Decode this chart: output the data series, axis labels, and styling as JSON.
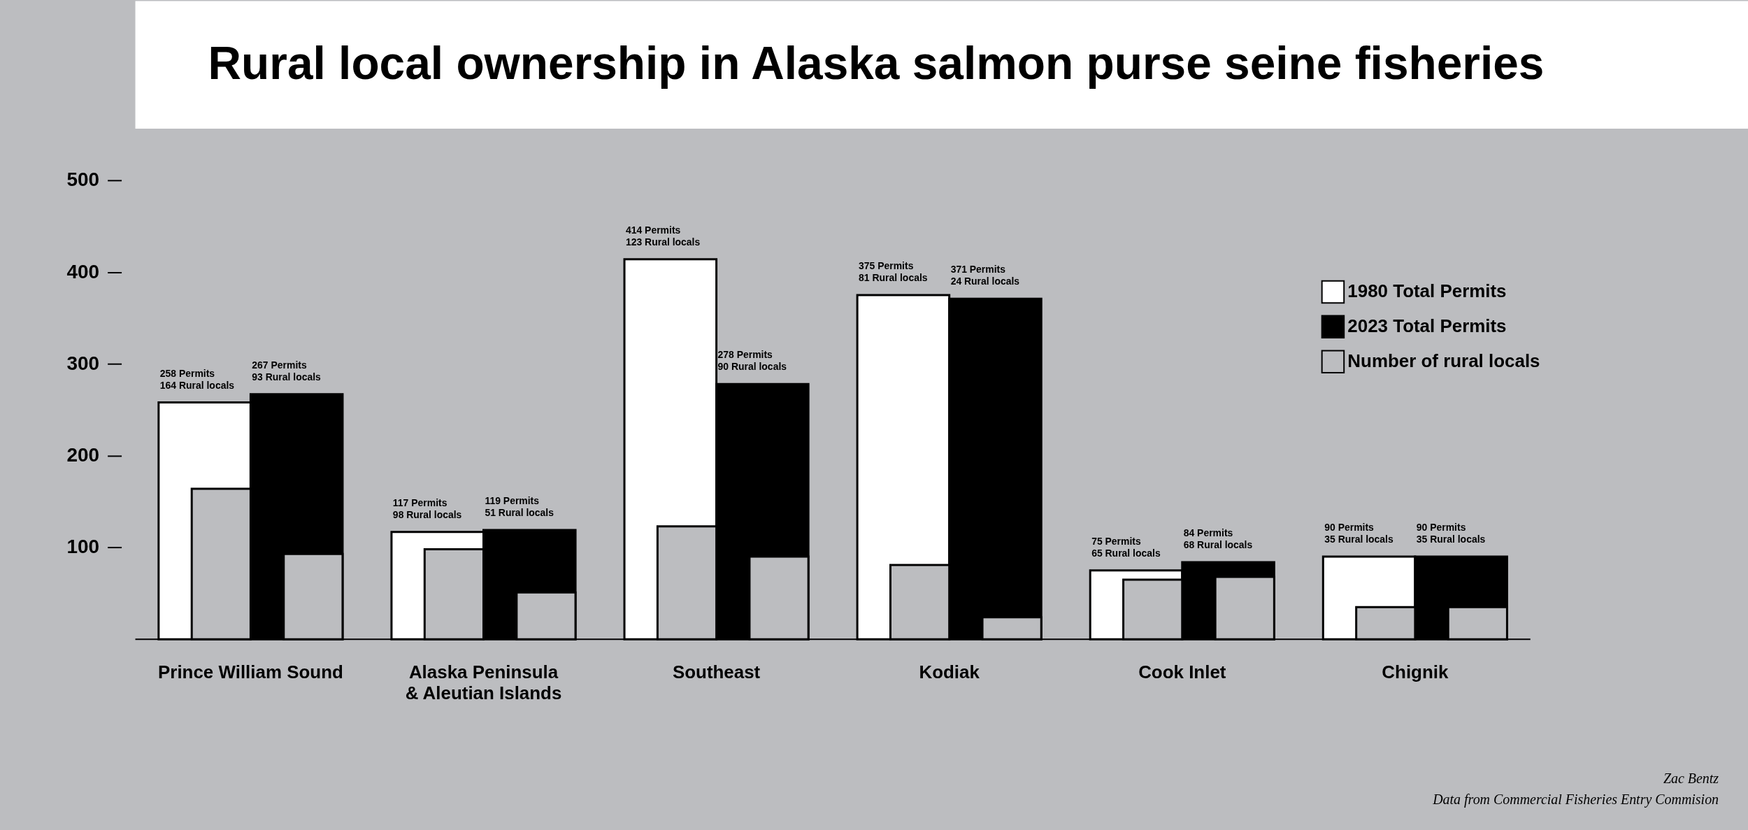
{
  "chart_data": {
    "type": "bar",
    "title": "Rural local ownership in Alaska salmon purse seine fisheries",
    "categories": [
      "Prince William Sound",
      "Alaska Peninsula & Aleutian Islands",
      "Southeast",
      "Kodiak",
      "Cook Inlet",
      "Chignik"
    ],
    "series": [
      {
        "name": "1980 Total Permits",
        "color": "#ffffff",
        "values": [
          258,
          117,
          414,
          375,
          75,
          90
        ],
        "value_labels": [
          "258 Permits\n164 Rural locals",
          "117 Permits\n98 Rural locals",
          "414 Permits\n123 Rural locals",
          "375 Permits\n81 Rural locals",
          "75 Permits\n65 Rural locals",
          "90 Permits\n35 Rural locals"
        ]
      },
      {
        "name": "2023 Total Permits",
        "color": "#000000",
        "values": [
          267,
          119,
          278,
          371,
          84,
          90
        ],
        "value_labels": [
          "267 Permits\n93 Rural locals",
          "119 Permits\n51 Rural locals",
          "278 Permits\n90 Rural locals",
          "371 Permits\n24 Rural locals",
          "84 Permits\n68 Rural locals",
          "90 Permits\n35 Rural locals"
        ]
      },
      {
        "name": "Number of rural locals",
        "color": "#bcbdc0",
        "values": [
          164,
          98,
          123,
          81,
          65,
          35
        ]
      },
      {
        "color": "#bcbdc0",
        "values": [
          93,
          51,
          90,
          24,
          68,
          35
        ]
      }
    ],
    "ylim": [
      0,
      500
    ],
    "yticks": [
      100,
      200,
      300,
      400,
      500
    ],
    "grid": false,
    "legend": "top right",
    "annotations": [
      "Zac Bentz",
      "Data from Commercial Fisheries Entry Commision"
    ]
  }
}
